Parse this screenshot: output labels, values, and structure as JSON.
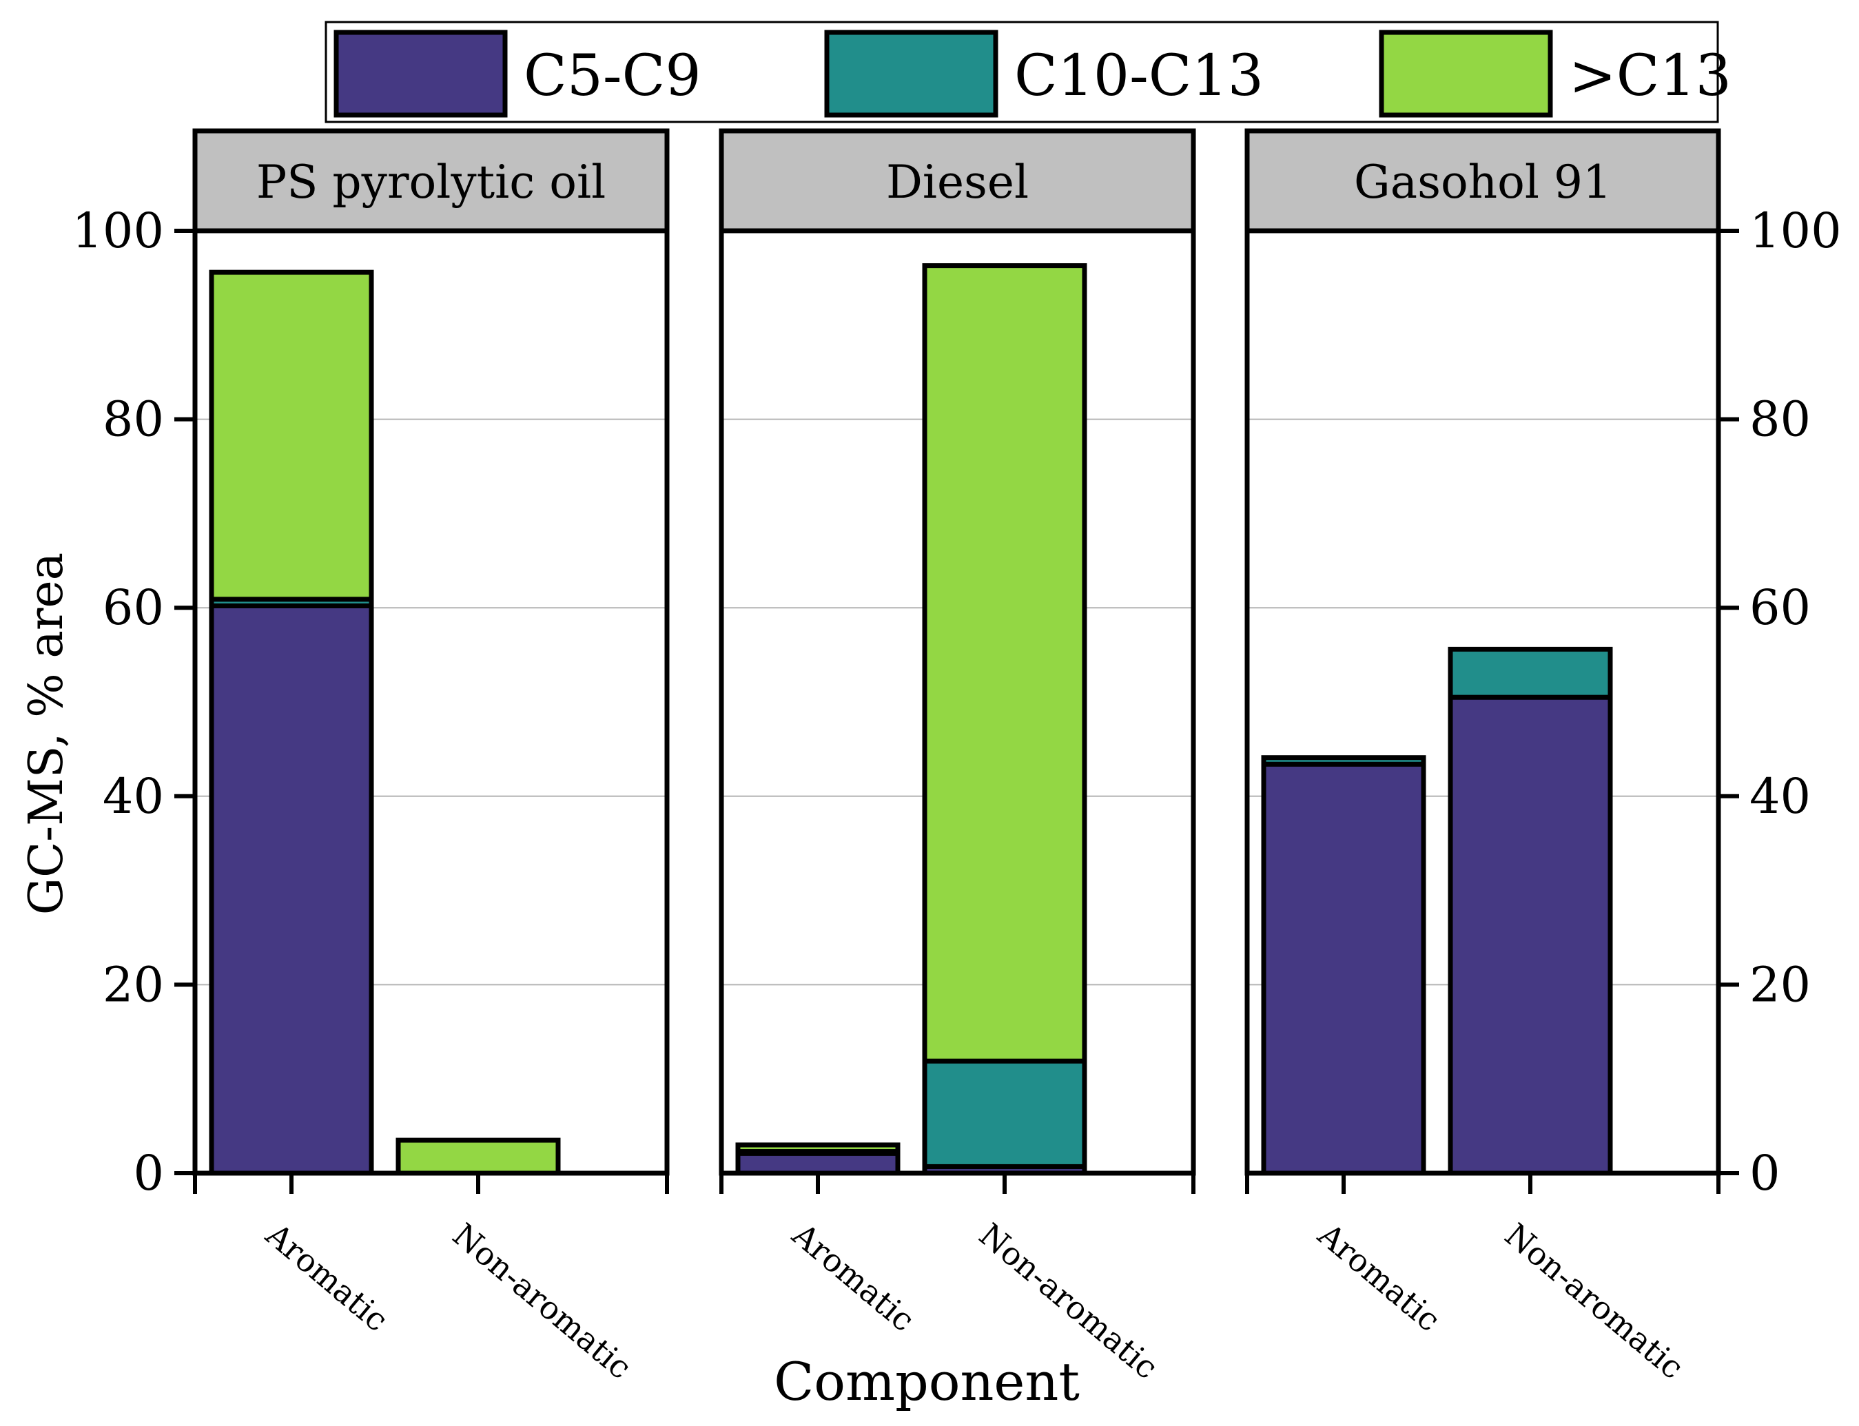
{
  "chart_data": {
    "type": "bar",
    "stacked": true,
    "xlabel": "Component",
    "ylabel": "GC-MS, % area",
    "ylim": [
      0,
      100
    ],
    "yticks": [
      0,
      20,
      40,
      60,
      80,
      100
    ],
    "grid": true,
    "categories": [
      "Aromatic",
      "Non-aromatic"
    ],
    "legend": {
      "position": "top",
      "entries": [
        {
          "name": "C5-C9",
          "color": "#453983"
        },
        {
          "name": "C10-C13",
          "color": "#218E8B"
        },
        {
          "name": ">C13",
          "color": "#93D744"
        }
      ]
    },
    "panels": [
      {
        "title": "PS pyrolytic oil",
        "series": [
          {
            "name": "C5-C9",
            "values": [
              60.2,
              0.0
            ]
          },
          {
            "name": "C10-C13",
            "values": [
              0.7,
              0.0
            ]
          },
          {
            "name": ">C13",
            "values": [
              34.7,
              3.5
            ]
          }
        ]
      },
      {
        "title": "Diesel",
        "series": [
          {
            "name": "C5-C9",
            "values": [
              2.1,
              0.7
            ]
          },
          {
            "name": "C10-C13",
            "values": [
              0.2,
              11.2
            ]
          },
          {
            "name": ">C13",
            "values": [
              0.7,
              84.4
            ]
          }
        ]
      },
      {
        "title": "Gasohol 91",
        "series": [
          {
            "name": "C5-C9",
            "values": [
              43.4,
              50.5
            ]
          },
          {
            "name": "C10-C13",
            "values": [
              0.7,
              5.1
            ]
          },
          {
            "name": ">C13",
            "values": [
              0.0,
              0.0
            ]
          }
        ]
      }
    ]
  }
}
